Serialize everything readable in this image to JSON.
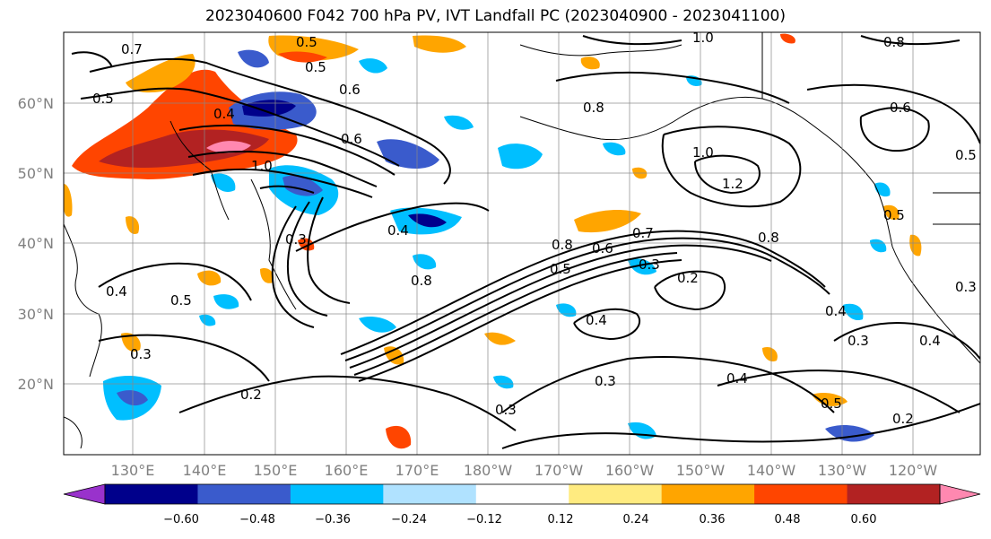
{
  "title": "2023040600 F042 700 hPa PV, IVT Landfall PC (2023040900 - 2023041100)",
  "map": {
    "lon_labels": [
      "130°E",
      "140°E",
      "150°E",
      "160°E",
      "170°E",
      "180°W",
      "170°W",
      "160°W",
      "150°W",
      "140°W",
      "130°W",
      "120°W"
    ],
    "lat_labels": [
      "60°N",
      "50°N",
      "40°N",
      "30°N",
      "20°N"
    ],
    "contour_labels": [
      "0.7",
      "0.5",
      "0.5",
      "0.5",
      "0.4",
      "1.0",
      "0.8",
      "1.0",
      "0.6",
      "0.8",
      "1.0",
      "1.2",
      "0.8",
      "0.6",
      "0.3",
      "0.4",
      "0.8",
      "0.8",
      "0.7",
      "0.6",
      "0.5",
      "0.3",
      "0.2",
      "0.4",
      "0.5",
      "0.4",
      "0.3",
      "0.4",
      "0.3",
      "0.3",
      "0.4",
      "0.5",
      "0.2",
      "0.2",
      "0.3",
      "0.4",
      "0.6",
      "0.5",
      "0.5",
      "0.3"
    ]
  },
  "colorbar": {
    "colors": [
      "#9932cc",
      "#00008b",
      "#3a5bcc",
      "#00bfff",
      "#b0e2ff",
      "#ffffff",
      "#ffeb80",
      "#ffa500",
      "#ff4500",
      "#b22222",
      "#ff88b0"
    ],
    "tick_labels": [
      "−0.60",
      "−0.48",
      "−0.36",
      "−0.24",
      "−0.12",
      "0.12",
      "0.24",
      "0.36",
      "0.48",
      "0.60"
    ]
  }
}
